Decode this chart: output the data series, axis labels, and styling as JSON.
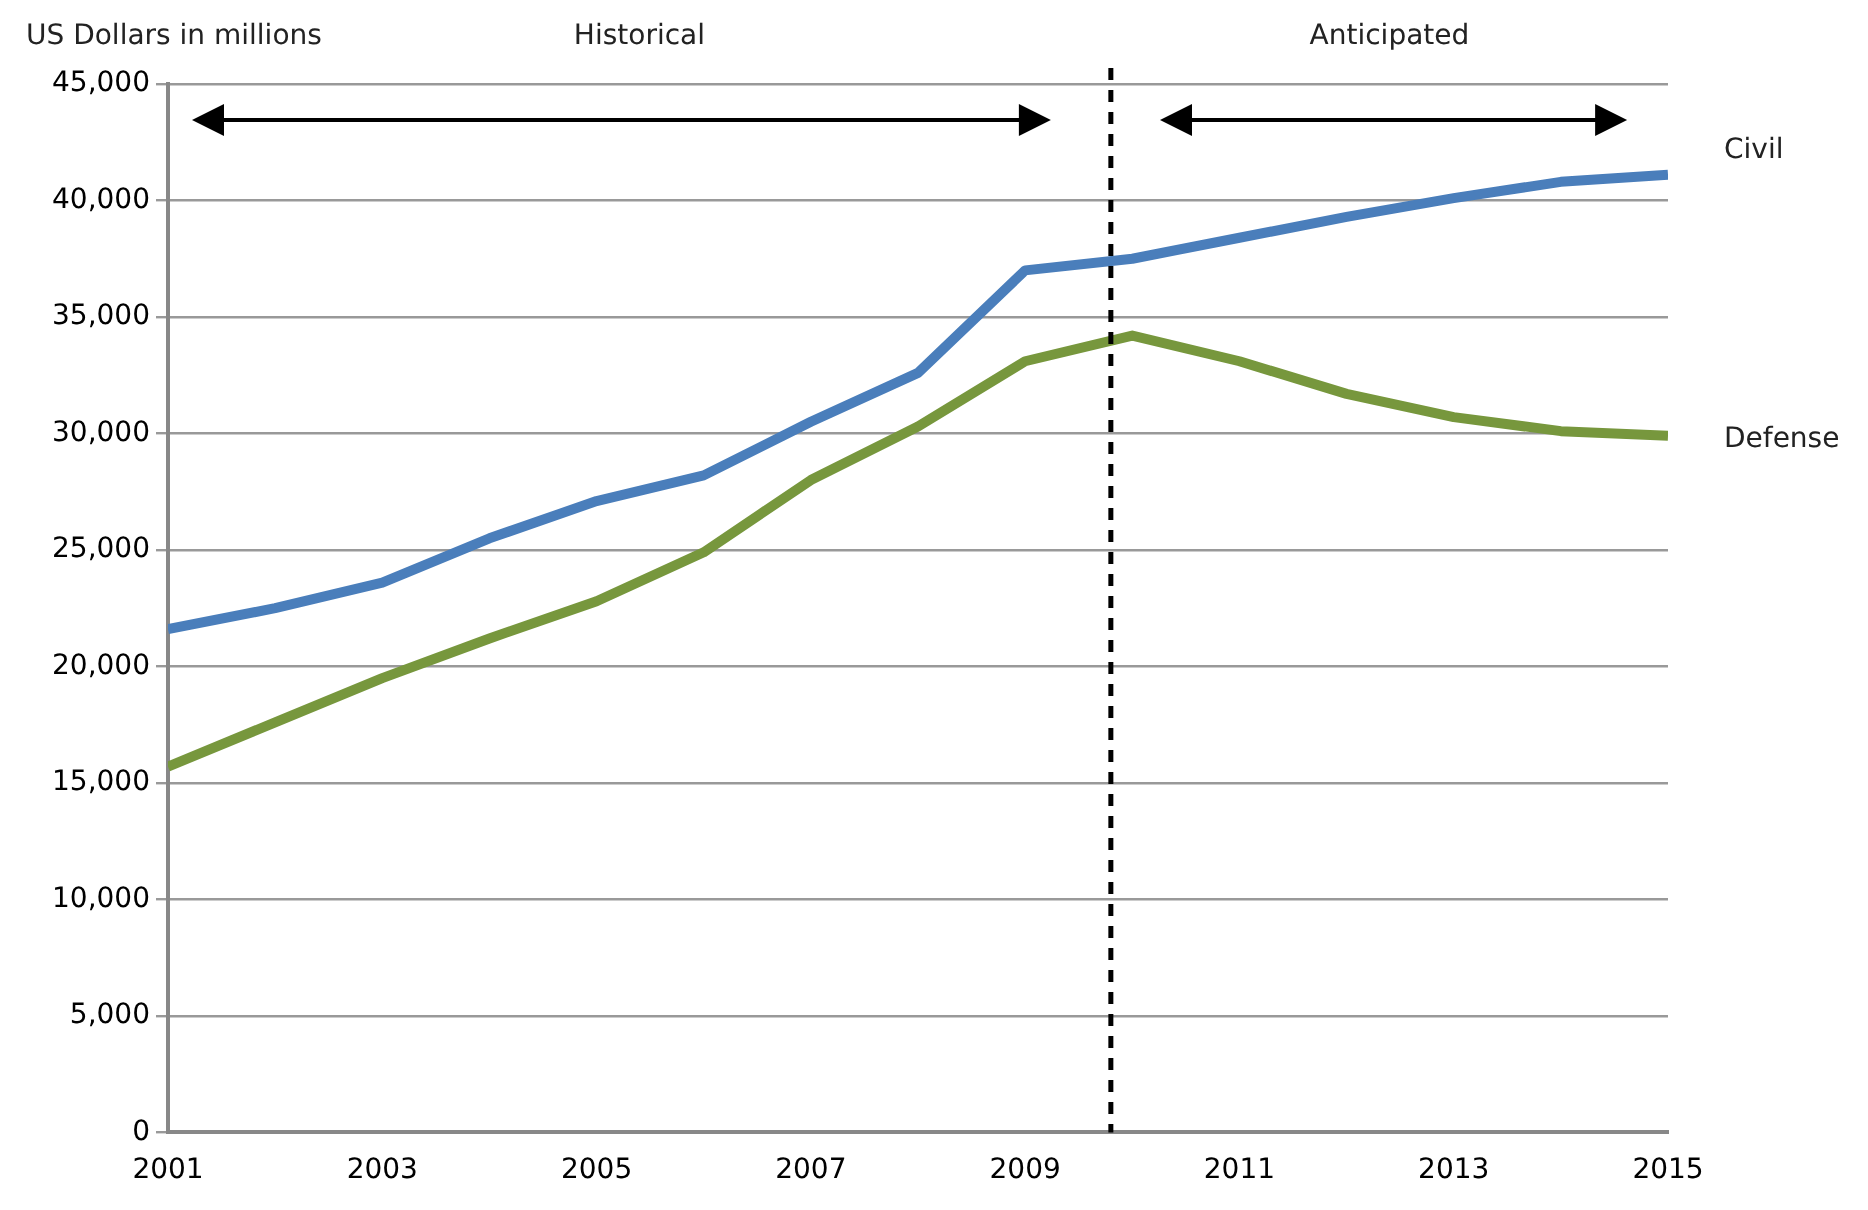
{
  "chart_data": {
    "type": "line",
    "ylabel": "US Dollars in millions",
    "x": [
      2001,
      2002,
      2003,
      2004,
      2005,
      2006,
      2007,
      2008,
      2009,
      2010,
      2011,
      2012,
      2013,
      2014,
      2015
    ],
    "series": [
      {
        "name": "Civil",
        "color": "#4a7ebb",
        "values": [
          21600,
          22500,
          23600,
          25500,
          27100,
          28200,
          30500,
          32600,
          37000,
          37500,
          38400,
          39300,
          40100,
          40800,
          41100
        ]
      },
      {
        "name": "Defense",
        "color": "#77973d",
        "values": [
          15700,
          17600,
          19500,
          21200,
          22800,
          24900,
          28000,
          30300,
          33100,
          34200,
          33100,
          31700,
          30700,
          30100,
          29900
        ]
      }
    ],
    "xlim": [
      2001,
      2015
    ],
    "xticks": [
      2001,
      2003,
      2005,
      2007,
      2009,
      2011,
      2013,
      2015
    ],
    "ylim": [
      0,
      45000
    ],
    "yticks": [
      0,
      {
        "value": 5000,
        "label": "5,000"
      },
      {
        "value": 10000,
        "label": "10,000"
      },
      {
        "value": 15000,
        "label": "15,000"
      },
      {
        "value": 20000,
        "label": "20,000"
      },
      {
        "value": 25000,
        "label": "25,000"
      },
      {
        "value": 30000,
        "label": "30,000"
      },
      {
        "value": 35000,
        "label": "35,000"
      },
      {
        "value": 40000,
        "label": "40,000"
      },
      {
        "value": 45000,
        "label": "45,000"
      }
    ],
    "grid": "y",
    "legend": false,
    "marker": "none",
    "line_style": "solid",
    "ref_lines": [
      {
        "axis": "x",
        "value": 2009.8,
        "color": "#000000",
        "line_style": "dashed"
      }
    ],
    "annotations": [
      "Historical",
      "Anticipated"
    ]
  }
}
